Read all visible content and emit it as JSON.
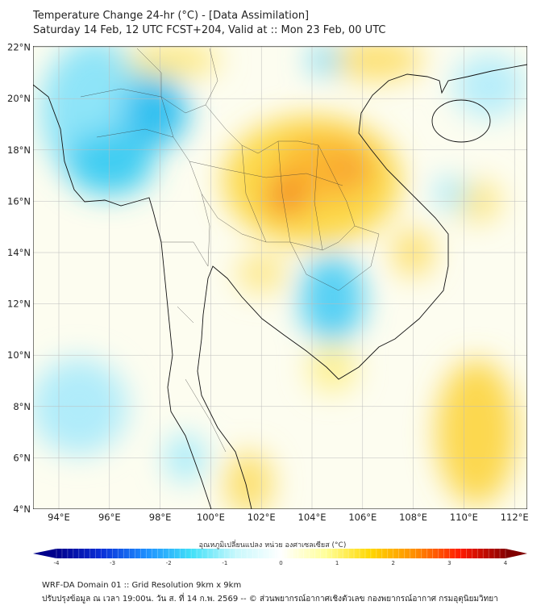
{
  "title": "Temperature Change 24-hr (°C) - [Data Assimilation]",
  "subtitle": "Saturday 14 Feb, 12 UTC FCST+204, Valid at :: Mon 23 Feb, 00 UTC",
  "map": {
    "lat_labels": [
      "22°N",
      "20°N",
      "18°N",
      "16°N",
      "14°N",
      "12°N",
      "10°N",
      "8°N",
      "6°N",
      "4°N"
    ],
    "lon_labels": [
      "94°E",
      "96°E",
      "98°E",
      "100°E",
      "102°E",
      "104°E",
      "106°E",
      "108°E",
      "110°E",
      "112°E"
    ],
    "extent": {
      "lon": [
        93,
        112.5
      ],
      "lat": [
        4,
        22
      ]
    }
  },
  "colorbar": {
    "title": "อุณหภูมิเปลี่ยนแปลง หน่วย องศาเซลเซียส (°C)",
    "ticks": [
      "-4",
      "-3",
      "-2",
      "-1",
      "0",
      "1",
      "2",
      "3",
      "4"
    ],
    "range": [
      -4,
      4
    ],
    "colors": [
      "#00008b",
      "#0a2fd8",
      "#1e90ff",
      "#40e0f8",
      "#c8f8fc",
      "#ffffff",
      "#ffff99",
      "#ffd700",
      "#ff8c00",
      "#ff1a00",
      "#8b0000"
    ]
  },
  "footer": {
    "line1": "WRF-DA Domain 01 :: Grid Resolution 9km x 9km",
    "line2": "ปรับปรุงข้อมูล ณ เวลา 19:00น. วัน ส. ที่ 14 ก.พ. 2569 -- © ส่วนพยากรณ์อากาศเชิงตัวเลข กองพยากรณ์อากาศ กรมอุตุนิยมวิทยา"
  }
}
